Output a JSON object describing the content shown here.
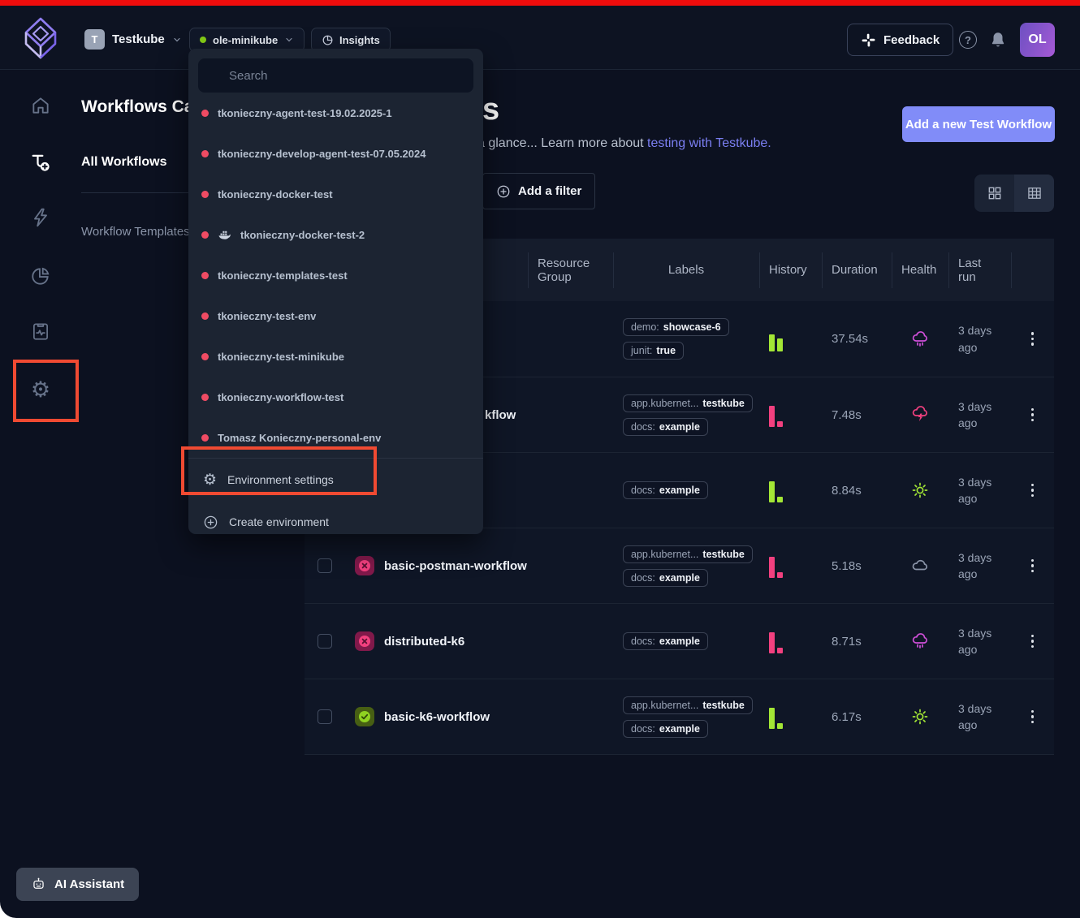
{
  "topbar": {
    "org": {
      "initial": "T",
      "name": "Testkube"
    },
    "environment": "ole-minikube",
    "insights_label": "Insights",
    "feedback_label": "Feedback",
    "help_label": "?",
    "avatar_initials": "OL"
  },
  "subnav": {
    "title_fragment": "Workflows Cata",
    "active_item": "All Workflows",
    "item": "Workflow Templates"
  },
  "page": {
    "title_fragment": "s",
    "description_fragment": "a glance... Learn more about ",
    "description_link": "testing with Testkube.",
    "add_workflow_label": "Add a new Test Workflow",
    "add_filter_label": "Add a filter"
  },
  "env_dropdown": {
    "search_placeholder": "Search",
    "items": [
      {
        "label": "tkonieczny-agent-test-19.02.2025-1"
      },
      {
        "label": "tkonieczny-develop-agent-test-07.05.2024"
      },
      {
        "label": "tkonieczny-docker-test"
      },
      {
        "label": "tkonieczny-docker-test-2",
        "icon": "docker"
      },
      {
        "label": "tkonieczny-templates-test"
      },
      {
        "label": "tkonieczny-test-env"
      },
      {
        "label": "tkonieczny-test-minikube"
      },
      {
        "label": "tkonieczny-workflow-test"
      },
      {
        "label": "Tomasz Konieczny-personal-env"
      }
    ],
    "settings_label": "Environment settings",
    "create_label": "Create environment"
  },
  "table": {
    "headers": [
      "Resource Group",
      "Labels",
      "History",
      "Duration",
      "Health",
      "Last run"
    ],
    "rows": [
      {
        "checkbox": false,
        "status": null,
        "name": "",
        "labels": [
          {
            "key": "demo:",
            "value": "showcase-6"
          },
          {
            "key": "junit:",
            "value": "true"
          }
        ],
        "history": {
          "color": "green",
          "bars": [
            21,
            16
          ]
        },
        "duration": "37.54s",
        "health": "rain",
        "last_run": "3 days ago"
      },
      {
        "checkbox": false,
        "status": null,
        "name_fragment": "kflow",
        "labels": [
          {
            "key": "app.kubernet...",
            "value": "testkube"
          },
          {
            "key": "docs:",
            "value": "example"
          }
        ],
        "history": {
          "color": "pink",
          "bars": [
            26,
            7
          ]
        },
        "duration": "7.48s",
        "health": "storm",
        "last_run": "3 days ago"
      },
      {
        "checkbox": false,
        "status": null,
        "name": "",
        "labels": [
          {
            "key": "docs:",
            "value": "example"
          }
        ],
        "history": {
          "color": "green",
          "bars": [
            26,
            7
          ]
        },
        "duration": "8.84s",
        "health": "sun",
        "last_run": "3 days ago"
      },
      {
        "checkbox": true,
        "status": "error",
        "name": "basic-postman-workflow",
        "labels": [
          {
            "key": "app.kubernet...",
            "value": "testkube"
          },
          {
            "key": "docs:",
            "value": "example"
          }
        ],
        "history": {
          "color": "pink",
          "bars": [
            26,
            7
          ]
        },
        "duration": "5.18s",
        "health": "cloud",
        "last_run": "3 days ago"
      },
      {
        "checkbox": true,
        "status": "error",
        "name": "distributed-k6",
        "labels": [
          {
            "key": "docs:",
            "value": "example"
          }
        ],
        "history": {
          "color": "pink",
          "bars": [
            26,
            7
          ]
        },
        "duration": "8.71s",
        "health": "rain",
        "last_run": "3 days ago"
      },
      {
        "checkbox": true,
        "status": "success",
        "name": "basic-k6-workflow",
        "labels": [
          {
            "key": "app.kubernet...",
            "value": "testkube"
          },
          {
            "key": "docs:",
            "value": "example"
          }
        ],
        "history": {
          "color": "green",
          "bars": [
            26,
            7
          ]
        },
        "duration": "6.17s",
        "health": "sun",
        "last_run": "3 days ago"
      }
    ]
  },
  "ai_assistant_label": "AI Assistant",
  "colors": {
    "accent": "#818cf8",
    "highlight_box": "#f04a32",
    "success": "#a3e635",
    "error": "#f2407f",
    "health_rain": "#cf4fd8",
    "health_cloud": "#8a94a8",
    "link": "#7b7ff2",
    "env_dot": "#84cc16",
    "top_stripe": "#ee0c0c"
  }
}
